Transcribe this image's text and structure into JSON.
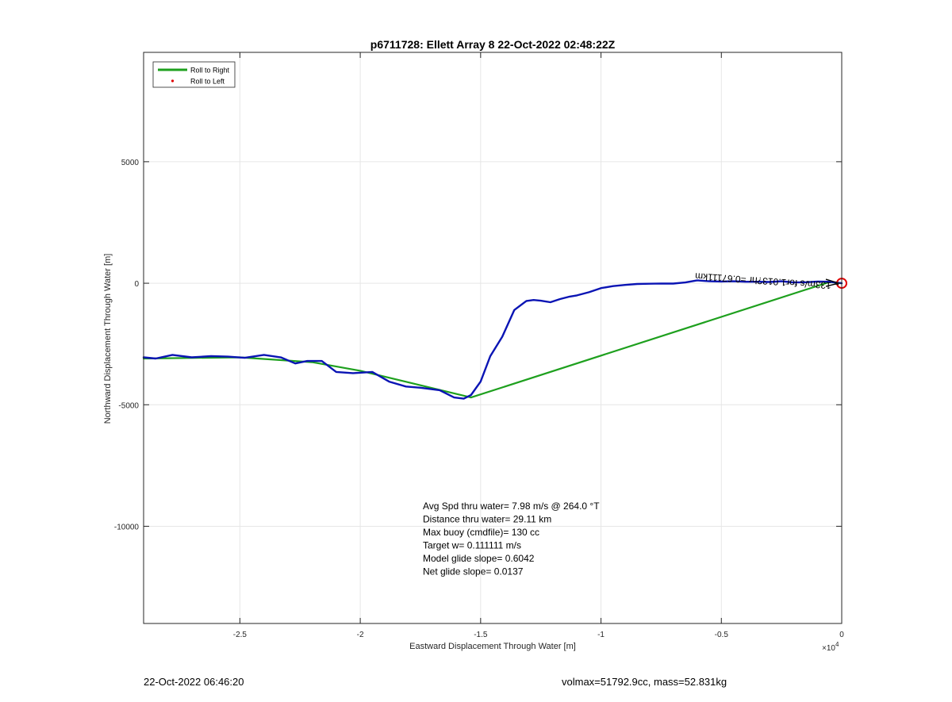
{
  "chart_data": {
    "type": "line",
    "title": "p6711728: Ellett Array 8 22-Oct-2022 02:48:22Z",
    "xlabel": "Eastward Displacement Through Water [m]",
    "ylabel": "Northward Displacement Through Water [m]",
    "x_exponent_label": "×10",
    "x_exponent_power": "4",
    "xlim": [
      -29000,
      0
    ],
    "ylim": [
      -14000,
      9500
    ],
    "x_ticks": [
      -25000,
      -20000,
      -15000,
      -10000,
      -5000,
      0
    ],
    "x_tick_labels": [
      "-2.5",
      "-2",
      "-1.5",
      "-1",
      "-0.5",
      "0"
    ],
    "y_ticks": [
      -10000,
      -5000,
      0,
      5000
    ],
    "y_tick_labels": [
      "-10000",
      "-5000",
      "0",
      "5000"
    ],
    "grid": true,
    "legend_position": "top-left",
    "legend": [
      {
        "label": "Roll to Right",
        "color": "#1ea01e",
        "style": "line"
      },
      {
        "label": "Roll to Left",
        "color": "#e00000",
        "style": "dot"
      }
    ],
    "series": [
      {
        "color": "#0a14b4",
        "x": [
          -29000,
          -28500,
          -27800,
          -27000,
          -26200,
          -25500,
          -24800,
          -24000,
          -23300,
          -22700,
          -22200,
          -21600,
          -21000,
          -20300,
          -19500,
          -18800,
          -18100,
          -17500,
          -16700,
          -16100,
          -15700,
          -15400,
          -15000,
          -14600,
          -14100,
          -13600,
          -13100,
          -12800,
          -12500,
          -12100,
          -11700,
          -11300,
          -11000,
          -10500,
          -10000,
          -9500,
          -9000,
          -8500,
          -8000,
          -7500,
          -7000,
          -6500,
          -6000,
          -5500,
          -5000,
          -4500,
          -4000,
          -3500,
          -3000,
          -2500,
          -2000,
          -1500,
          -1000,
          -500,
          0
        ],
        "y": [
          -3050,
          -3100,
          -2950,
          -3050,
          -3000,
          -3020,
          -3070,
          -2950,
          -3050,
          -3300,
          -3200,
          -3200,
          -3650,
          -3700,
          -3650,
          -4050,
          -4250,
          -4300,
          -4400,
          -4700,
          -4750,
          -4600,
          -4050,
          -3000,
          -2200,
          -1100,
          -730,
          -690,
          -720,
          -780,
          -650,
          -550,
          -500,
          -370,
          -200,
          -120,
          -70,
          -30,
          -20,
          -10,
          -15,
          30,
          120,
          80,
          70,
          80,
          60,
          60,
          50,
          80,
          30,
          40,
          70,
          60,
          0
        ]
      },
      {
        "color": "#1ea01e",
        "x": [
          -29000,
          -25000,
          -22000,
          -20000,
          -17500,
          -15400,
          -500,
          0
        ],
        "y": [
          -3100,
          -3050,
          -3250,
          -3600,
          -4200,
          -4700,
          50,
          0
        ]
      }
    ],
    "annotation_text": "←133m/s for1.013?hr =0.67111km",
    "end_marker": {
      "x": 0,
      "y": 0,
      "color": "#e00000"
    },
    "stats": [
      "Avg Spd thru water=  7.98 m/s @ 264.0 °T",
      "Distance thru water= 29.11 km",
      "Max buoy (cmdfile)= 130 cc",
      "Target w= 0.111111 m/s",
      "Model glide slope= 0.6042",
      "Net glide slope= 0.0137"
    ]
  },
  "footer": {
    "left": "22-Oct-2022 06:46:20",
    "right": "volmax=51792.9cc, mass=52.831kg"
  }
}
